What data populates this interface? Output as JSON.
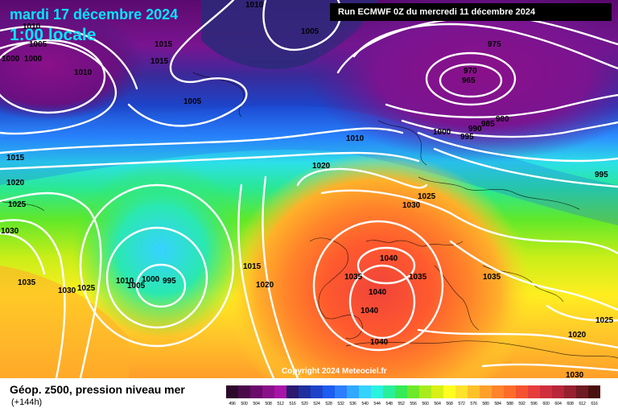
{
  "header": {
    "date": "mardi 17 décembre 2024",
    "time": "1:00 locale",
    "run": "Run ECMWF 0Z du mercredi 11 décembre 2024"
  },
  "copyright": "Copyright 2024 Meteociel.fr",
  "footer": {
    "title": "Géop. z500, pression niveau mer",
    "subtitle": "(+144h)"
  },
  "isobar_labels": [
    "1010",
    "1010",
    "1005",
    "1000",
    "1000",
    "1015",
    "1015",
    "1010",
    "1005",
    "975",
    "970",
    "965",
    "985",
    "980",
    "990",
    "995",
    "1000",
    "1010",
    "1005",
    "995",
    "1015",
    "1020",
    "1020",
    "1025",
    "1030",
    "1025",
    "1030",
    "1035",
    "1030",
    "1025",
    "1010",
    "1005",
    "1000",
    "995",
    "1015",
    "1020",
    "1040",
    "1035",
    "1035",
    "1040",
    "1040",
    "1040",
    "1035",
    "1025",
    "1020",
    "1030"
  ],
  "scale": {
    "labels": [
      "496",
      "500",
      "504",
      "508",
      "512",
      "516",
      "520",
      "524",
      "528",
      "532",
      "536",
      "540",
      "544",
      "548",
      "552",
      "556",
      "560",
      "564",
      "568",
      "572",
      "576",
      "580",
      "584",
      "588",
      "592",
      "596",
      "600",
      "604",
      "608",
      "612",
      "616"
    ],
    "colors": [
      "#2d0a2d",
      "#4a0a4a",
      "#6a0a6a",
      "#8a108a",
      "#a814a8",
      "#2b1a6e",
      "#1f2f9e",
      "#1d44c8",
      "#1c5cf0",
      "#2c7eff",
      "#2fa8ff",
      "#36d2ff",
      "#2af2e0",
      "#2aef9a",
      "#35ea55",
      "#6ee82a",
      "#a8ec1e",
      "#d8f016",
      "#ffff20",
      "#ffe22a",
      "#ffc12a",
      "#ffa02a",
      "#ff842a",
      "#ff6c2a",
      "#f5522f",
      "#e63d3d",
      "#cf2f3c",
      "#b8263a",
      "#96202e",
      "#701a22",
      "#4a1010"
    ]
  }
}
